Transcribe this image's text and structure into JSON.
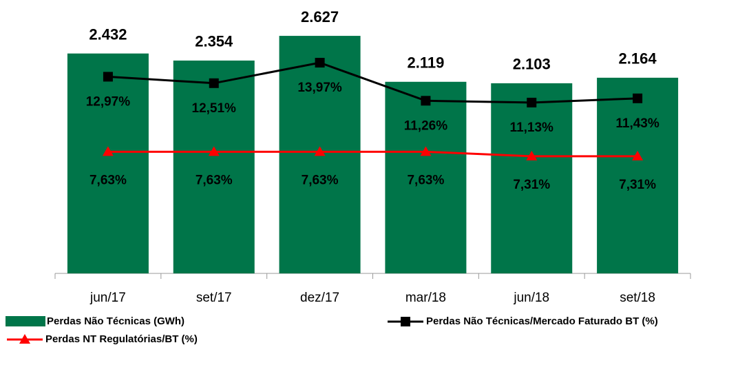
{
  "chart_data": {
    "type": "bar",
    "categories": [
      "jun/17",
      "set/17",
      "dez/17",
      "mar/18",
      "jun/18",
      "set/18"
    ],
    "series": [
      {
        "name": "Perdas Não Técnicas (GWh)",
        "type": "bar",
        "color": "#007549",
        "values": [
          2432,
          2354,
          2627,
          2119,
          2103,
          2164
        ],
        "value_labels": [
          "2.432",
          "2.354",
          "2.627",
          "2.119",
          "2.103",
          "2.164"
        ]
      },
      {
        "name": "Perdas Não Técnicas/Mercado Faturado BT (%)",
        "type": "line",
        "color": "#000000",
        "values": [
          12.97,
          12.51,
          13.97,
          11.26,
          11.13,
          11.43
        ],
        "value_labels": [
          "12,97%",
          "12,51%",
          "13,97%",
          "11,26%",
          "11,13%",
          "11,43%"
        ]
      },
      {
        "name": "Perdas NT Regulatórias/BT (%)",
        "type": "line",
        "color": "#ff0000",
        "values": [
          7.63,
          7.63,
          7.63,
          7.63,
          7.31,
          7.31
        ],
        "value_labels": [
          "7,63%",
          "7,63%",
          "7,63%",
          "7,63%",
          "7,31%",
          "7,31%"
        ]
      }
    ]
  }
}
